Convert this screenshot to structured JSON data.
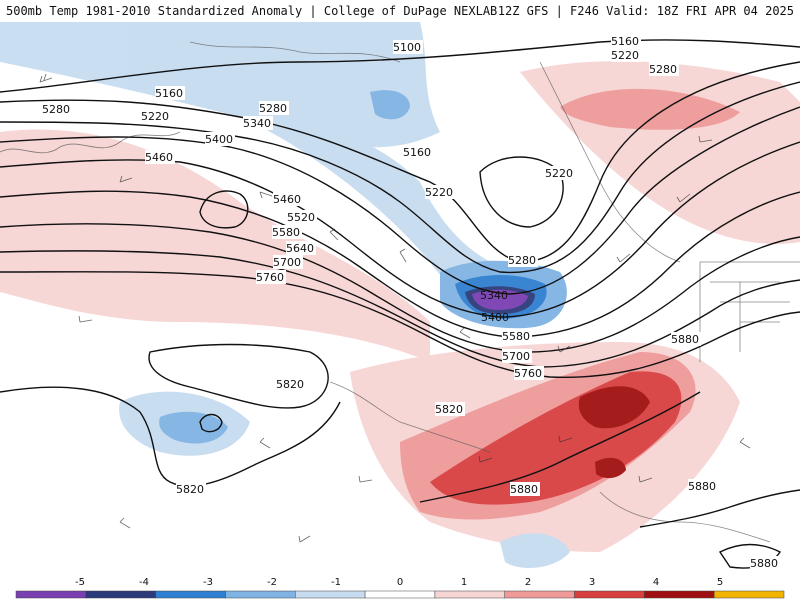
{
  "header": {
    "title": "500mb Temp 1981-2010 Standardized Anomaly | College of DuPage NEXLAB",
    "run_info": "12Z GFS | F246 Valid: 18Z FRI APR 04 2025"
  },
  "contour_labels": [
    "5100",
    "5160",
    "5220",
    "5280",
    "5160",
    "5220",
    "5280",
    "5340",
    "5400",
    "5460",
    "5160",
    "5220",
    "5460",
    "5520",
    "5580",
    "5640",
    "5700",
    "5760",
    "5280",
    "5340",
    "5400",
    "5580",
    "5700",
    "5760",
    "5820",
    "5820",
    "5820",
    "5880",
    "5880",
    "5880",
    "5880",
    "5160",
    "5220",
    "5280"
  ],
  "colorbar": {
    "ticks": [
      "-5",
      "-4",
      "-3",
      "-2",
      "-1",
      "0",
      "1",
      "2",
      "3",
      "4",
      "5"
    ],
    "colors": [
      "#7a3fb0",
      "#2d3a7a",
      "#2f7fd0",
      "#7fb3e3",
      "#c7dcf0",
      "#ffffff",
      "#f7d4d4",
      "#ef9999",
      "#d84040",
      "#a01010",
      "#f2b400"
    ]
  }
}
